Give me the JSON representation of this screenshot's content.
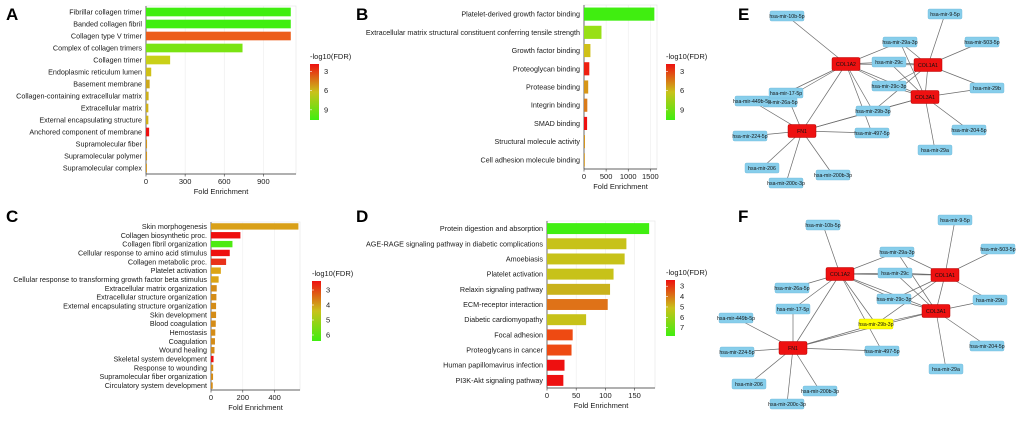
{
  "panel_labels": [
    "A",
    "B",
    "C",
    "D",
    "E",
    "F"
  ],
  "chart_data": [
    {
      "panel": "A",
      "type": "bar",
      "orientation": "horizontal",
      "xlabel": "Fold Enrichment",
      "xticks": [
        0,
        300,
        600,
        900
      ],
      "xlim": [
        0,
        1150
      ],
      "categories": [
        "Fibrillar collagen trimer",
        "Banded collagen fibril",
        "Collagen type V trimer",
        "Complex of collagen trimers",
        "Collagen trimer",
        "Endoplasmic reticulum lumen",
        "Basement membrane",
        "Collagen-containing extracellular matrix",
        "Extracellular matrix",
        "External encapsulating structure",
        "Anchored component of membrane",
        "Supramolecular fiber",
        "Supramolecular polymer",
        "Supramolecular complex"
      ],
      "values": [
        1110,
        1110,
        1110,
        740,
        185,
        40,
        28,
        20,
        18,
        18,
        24,
        8,
        8,
        7
      ],
      "colors": [
        "#40ee10",
        "#40ee10",
        "#ec5d1a",
        "#7ae412",
        "#c9d018",
        "#cfc018",
        "#cca81b",
        "#cdb01b",
        "#cfb019",
        "#cfb019",
        "#ee1010",
        "#d49418",
        "#d49418",
        "#d49418"
      ],
      "legend": {
        "title": "-log10(FDR)",
        "ticks": [
          "3",
          "6",
          "9"
        ],
        "range": [
          1.8,
          10.6
        ],
        "position": "right"
      }
    },
    {
      "panel": "B",
      "type": "bar",
      "orientation": "horizontal",
      "xlabel": "Fold Enrichment",
      "xticks": [
        0,
        500,
        1000,
        1500
      ],
      "xlim": [
        0,
        1650
      ],
      "categories": [
        "Platelet-derived growth factor binding",
        "Extracellular matrix structural constituent conferring tensile strength",
        "Growth factor binding",
        "Proteoglycan binding",
        "Protease binding",
        "Integrin binding",
        "SMAD binding",
        "Structural molecule activity",
        "Cell adhesion molecule binding"
      ],
      "values": [
        1590,
        395,
        145,
        120,
        95,
        75,
        70,
        22,
        12
      ],
      "colors": [
        "#40ee10",
        "#98e016",
        "#cfc018",
        "#ee2010",
        "#d79618",
        "#da7b1a",
        "#ee1010",
        "#d49418",
        "#d49418"
      ],
      "legend": {
        "title": "-log10(FDR)",
        "ticks": [
          "3",
          "6",
          "9"
        ],
        "range": [
          1.8,
          10.6
        ],
        "position": "right"
      }
    },
    {
      "panel": "C",
      "type": "bar",
      "orientation": "horizontal",
      "xlabel": "Fold Enrichment",
      "xticks": [
        0,
        200,
        400
      ],
      "xlim": [
        0,
        560
      ],
      "categories": [
        "Skin morphogenesis",
        "Collagen biosynthetic proc.",
        "Collagen fibril organization",
        "Cellular response to amino acid stimulus",
        "Collagen metabolic proc.",
        "Platelet activation",
        "Cellular response to transforming growth factor beta stimulus",
        "Extracellular matrix organization",
        "Extracellular structure organization",
        "External encapsulating structure organization",
        "Skin development",
        "Blood coagulation",
        "Hemostasis",
        "Coagulation",
        "Wound healing",
        "Skeletal system development",
        "Response to wounding",
        "Supramolecular fiber organization",
        "Circulatory system development"
      ],
      "values": [
        550,
        185,
        135,
        118,
        95,
        62,
        48,
        36,
        34,
        32,
        32,
        30,
        27,
        25,
        22,
        16,
        14,
        13,
        11
      ],
      "colors": [
        "#d9a018",
        "#ee1010",
        "#4eea12",
        "#ee1010",
        "#e8321a",
        "#dca516",
        "#dca516",
        "#d48c18",
        "#d48c18",
        "#d48c18",
        "#d48c18",
        "#d48c18",
        "#d48c18",
        "#d48c18",
        "#d48c18",
        "#ee1010",
        "#d48c18",
        "#d48c18",
        "#d48c18"
      ],
      "legend": {
        "title": "-log10(FDR)",
        "ticks": [
          "3",
          "4",
          "5",
          "6"
        ],
        "range": [
          2.4,
          6.4
        ],
        "position": "right"
      }
    },
    {
      "panel": "D",
      "type": "bar",
      "orientation": "horizontal",
      "xlabel": "Fold Enrichment",
      "xticks": [
        0,
        50,
        100,
        150
      ],
      "xlim": [
        0,
        185
      ],
      "categories": [
        "Protein digestion and absorption",
        "AGE-RAGE signaling pathway in diabetic complications",
        "Amoebiasis",
        "Platelet activation",
        "Relaxin signaling pathway",
        "ECM-receptor interaction",
        "Diabetic cardiomyopathy",
        "Focal adhesion",
        "Proteoglycans in cancer",
        "Human papillomavirus infection",
        "PI3K-Akt signaling pathway"
      ],
      "values": [
        175,
        136,
        133,
        114,
        108,
        104,
        67,
        44,
        42,
        30,
        28
      ],
      "colors": [
        "#40ee10",
        "#c7c219",
        "#c7c219",
        "#c7c219",
        "#c9b21b",
        "#df7218",
        "#c7c219",
        "#ee4a12",
        "#ee4a12",
        "#ee1010",
        "#ee1010"
      ],
      "legend": {
        "title": "-log10(FDR)",
        "ticks": [
          "3",
          "4",
          "5",
          "6",
          "7"
        ],
        "range": [
          2.4,
          7.8
        ],
        "position": "right"
      }
    }
  ],
  "networks": [
    {
      "panel": "E",
      "hubs": [
        {
          "id": "COL1A2",
          "label": "COL1A2"
        },
        {
          "id": "COL1A1",
          "label": "COL1A1"
        },
        {
          "id": "COL3A1",
          "label": "COL3A1"
        },
        {
          "id": "FN1",
          "label": "FN1"
        }
      ],
      "mirnas": [
        "hsa-mir-10b-5p",
        "hsa-mir-9-5p",
        "hsa-mir-503-5p",
        "hsa-mir-29a-3p",
        "hsa-mir-29c",
        "hsa-mir-26a-5p",
        "hsa-mir-29c-3p",
        "hsa-mir-29b",
        "hsa-mir-17-5p",
        "hsa-mir-29b-3p",
        "hsa-mir-449b-5p",
        "hsa-mir-224-5p",
        "hsa-mir-497-5p",
        "hsa-mir-204-5p",
        "hsa-mir-29a",
        "hsa-mir-206",
        "hsa-mir-200b-3p",
        "hsa-mir-200c-3p"
      ]
    },
    {
      "panel": "F",
      "hubs": [
        {
          "id": "COL1A2",
          "label": "COL1A2"
        },
        {
          "id": "COL1A1",
          "label": "COL1A1"
        },
        {
          "id": "COL3A1",
          "label": "COL3A1"
        },
        {
          "id": "FN1",
          "label": "FN1"
        }
      ],
      "mirnas": [
        "hsa-mir-10b-5p",
        "hsa-mir-9-5p",
        "hsa-mir-503-5p",
        "hsa-mir-29a-3p",
        "hsa-mir-29c",
        "hsa-mir-26a-5p",
        "hsa-mir-29c-3p",
        "hsa-mir-29b",
        "hsa-mir-17-5p",
        "hsa-mir-29b-3p",
        "hsa-mir-449b-5p",
        "hsa-mir-224-5p",
        "hsa-mir-497-5p",
        "hsa-mir-204-5p",
        "hsa-mir-29a",
        "hsa-mir-206",
        "hsa-mir-200b-3p",
        "hsa-mir-200c-3p"
      ],
      "highlight": "hsa-mir-29b-3p",
      "highlight_color": "#ffff00"
    }
  ]
}
